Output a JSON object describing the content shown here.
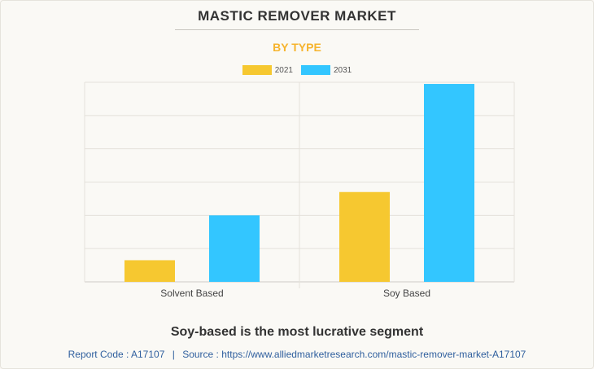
{
  "header": {
    "title": "MASTIC REMOVER MARKET",
    "subtitle": "BY TYPE"
  },
  "colors": {
    "series_2021": "#f6c830",
    "series_2031": "#33c6ff",
    "subtitle": "#f6b42e",
    "footer": "#2f5f9e"
  },
  "chart_data": {
    "type": "bar",
    "categories": [
      "Solvent Based",
      "Soy Based"
    ],
    "series": [
      {
        "name": "2021",
        "values": [
          0.65,
          2.7
        ]
      },
      {
        "name": "2031",
        "values": [
          2.0,
          5.95
        ]
      }
    ],
    "ylim": [
      0,
      6
    ],
    "grid": true,
    "legend_position": "top-center",
    "xlabel": "",
    "ylabel": ""
  },
  "footer": {
    "headline": "Soy-based is the most lucrative segment",
    "report_code_label": "Report Code : A17107",
    "separator": "|",
    "source_label": "Source : https://www.alliedmarketresearch.com/mastic-remover-market-A17107"
  }
}
